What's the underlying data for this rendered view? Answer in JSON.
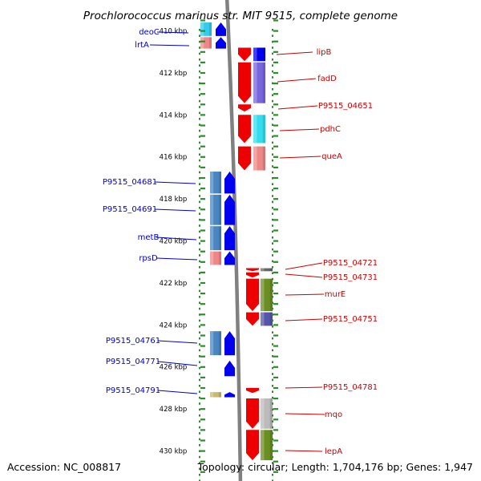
{
  "title": "Prochlorococcus marinus str. MIT 9515, complete genome",
  "footer": {
    "accession": "Accession: NC_008817",
    "topology": "Topology: circular; Length: 1,704,176 bp; Genes: 1,947"
  },
  "colors": {
    "reverse_label": "#0000cc",
    "forward_label": "#cc0000",
    "backbone": "#808080",
    "tick": "#2e8b2e"
  },
  "ticks": [
    "410 kbp",
    "412 kbp",
    "414 kbp",
    "416 kbp",
    "418 kbp",
    "420 kbp",
    "422 kbp",
    "424 kbp",
    "426 kbp",
    "428 kbp",
    "430 kbp"
  ],
  "genes_reverse": [
    {
      "label": "deoC",
      "start_kbp": 409.6,
      "end_kbp": 410.3,
      "cog_color": "#33ccee"
    },
    {
      "label": "lrtA",
      "start_kbp": 410.3,
      "end_kbp": 410.9,
      "cog_color": "#ee8888"
    },
    {
      "label": "P9515_04681",
      "start_kbp": 416.7,
      "end_kbp": 417.8,
      "cog_color": "#4a86c0"
    },
    {
      "label": "P9515_04691",
      "start_kbp": 417.8,
      "end_kbp": 419.3,
      "cog_color": "#4a86c0"
    },
    {
      "label": "metB",
      "start_kbp": 419.3,
      "end_kbp": 420.5,
      "cog_color": "#4a86c0"
    },
    {
      "label": "rpsD",
      "start_kbp": 420.5,
      "end_kbp": 421.2,
      "cog_color": "#ee8888"
    },
    {
      "label": "P9515_04761",
      "start_kbp": 424.3,
      "end_kbp": 425.5,
      "cog_color": "#4a86c0"
    },
    {
      "label": "P9515_04771",
      "start_kbp": 425.7,
      "end_kbp": 426.5,
      "cog_color": "#ffffff"
    },
    {
      "label": "P9515_04791",
      "start_kbp": 427.2,
      "end_kbp": 427.5,
      "cog_color": "#c8b870"
    }
  ],
  "genes_forward": [
    {
      "label": "lipB",
      "start_kbp": 410.8,
      "end_kbp": 411.5,
      "cog_color": "#0000ee"
    },
    {
      "label": "fadD",
      "start_kbp": 411.5,
      "end_kbp": 413.5,
      "cog_color": "#7766dd"
    },
    {
      "label": "P9515_04651",
      "start_kbp": 413.5,
      "end_kbp": 413.9,
      "cog_color": "#ffffff"
    },
    {
      "label": "pdhC",
      "start_kbp": 414.0,
      "end_kbp": 415.4,
      "cog_color": "#33ddee"
    },
    {
      "label": "queA",
      "start_kbp": 415.5,
      "end_kbp": 416.7,
      "cog_color": "#ee8888"
    },
    {
      "label": "P9515_04721",
      "start_kbp": 421.3,
      "end_kbp": 421.5,
      "cog_color": "#666666"
    },
    {
      "label": "P9515_04731",
      "start_kbp": 421.5,
      "end_kbp": 421.8,
      "cog_color": "#ffffff"
    },
    {
      "label": "murE",
      "start_kbp": 421.8,
      "end_kbp": 423.4,
      "cog_color": "#6b8e23"
    },
    {
      "label": "P9515_04751",
      "start_kbp": 423.4,
      "end_kbp": 424.1,
      "cog_color": "#5555aa"
    },
    {
      "label": "P9515_04781",
      "start_kbp": 427.0,
      "end_kbp": 427.3,
      "cog_color": "#ffffff"
    },
    {
      "label": "mqo",
      "start_kbp": 427.5,
      "end_kbp": 429.0,
      "cog_color": "#bbbbbb"
    },
    {
      "label": "lepA",
      "start_kbp": 429.0,
      "end_kbp": 430.5,
      "cog_color": "#6b8e23"
    }
  ]
}
